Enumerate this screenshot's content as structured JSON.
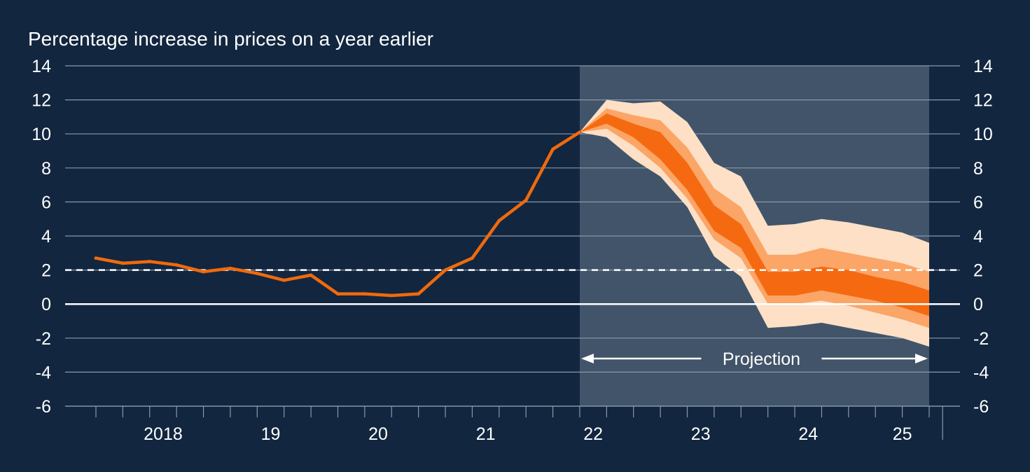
{
  "chart_data": {
    "type": "line",
    "title": "Percentage increase in prices on a year earlier",
    "xlabel": "",
    "ylabel": "",
    "ylim": [
      -6,
      14
    ],
    "yticks": [
      -6,
      -4,
      -2,
      0,
      2,
      4,
      6,
      8,
      10,
      12,
      14
    ],
    "year_labels": [
      {
        "label": "2018",
        "year": 2018
      },
      {
        "label": "19",
        "year": 2019
      },
      {
        "label": "20",
        "year": 2020
      },
      {
        "label": "21",
        "year": 2021
      },
      {
        "label": "22",
        "year": 2022
      },
      {
        "label": "23",
        "year": 2023
      },
      {
        "label": "24",
        "year": 2024
      },
      {
        "label": "25",
        "year": 2025
      }
    ],
    "target_line": {
      "value": 2,
      "style": "dashed"
    },
    "zero_line": {
      "value": 0
    },
    "projection": {
      "label": "Projection",
      "start": "2022 Q2",
      "end": "2025 Q3"
    },
    "series": [
      {
        "type": "line",
        "x": [
          "2017 Q4",
          "2018 Q1",
          "2018 Q2",
          "2018 Q3",
          "2018 Q4",
          "2019 Q1",
          "2019 Q2",
          "2019 Q3",
          "2019 Q4",
          "2020 Q1",
          "2020 Q2",
          "2020 Q3",
          "2020 Q4",
          "2021 Q1",
          "2021 Q2",
          "2021 Q3",
          "2021 Q4",
          "2022 Q1",
          "2022 Q2"
        ],
        "values": [
          2.7,
          2.4,
          2.5,
          2.3,
          1.9,
          2.1,
          1.8,
          1.4,
          1.7,
          0.6,
          0.6,
          0.5,
          0.6,
          2.0,
          2.7,
          4.9,
          6.1,
          9.1,
          10.1
        ]
      }
    ],
    "fan_chart": {
      "x": [
        "2022 Q2",
        "2022 Q3",
        "2022 Q4",
        "2023 Q1",
        "2023 Q2",
        "2023 Q3",
        "2023 Q4",
        "2024 Q1",
        "2024 Q2",
        "2024 Q3",
        "2024 Q4",
        "2025 Q1",
        "2025 Q2",
        "2025 Q3"
      ],
      "central": [
        10.1,
        10.9,
        10.2,
        9.3,
        7.5,
        5.0,
        4.0,
        1.2,
        1.2,
        1.5,
        1.2,
        0.9,
        0.6,
        0.0
      ],
      "bands": [
        {
          "level": "outer",
          "upper": [
            10.1,
            12.0,
            11.8,
            11.9,
            10.7,
            8.3,
            7.5,
            4.6,
            4.7,
            5.0,
            4.8,
            4.5,
            4.2,
            3.6
          ],
          "lower": [
            10.1,
            9.8,
            8.5,
            7.5,
            5.7,
            2.8,
            1.6,
            -1.4,
            -1.3,
            -1.1,
            -1.4,
            -1.7,
            -2.0,
            -2.5
          ]
        },
        {
          "level": "middle",
          "upper": [
            10.1,
            11.5,
            11.1,
            10.8,
            9.2,
            6.8,
            5.7,
            2.9,
            2.9,
            3.3,
            3.0,
            2.7,
            2.4,
            1.9
          ],
          "lower": [
            10.1,
            10.3,
            9.3,
            8.0,
            6.2,
            3.8,
            2.7,
            0.0,
            0.0,
            0.2,
            -0.1,
            -0.5,
            -0.9,
            -1.4
          ]
        },
        {
          "level": "inner",
          "upper": [
            10.1,
            11.2,
            10.6,
            10.1,
            8.3,
            5.8,
            4.7,
            1.9,
            1.9,
            2.2,
            2.0,
            1.6,
            1.3,
            0.8
          ],
          "lower": [
            10.1,
            10.6,
            9.8,
            8.5,
            6.7,
            4.3,
            3.3,
            0.5,
            0.5,
            0.8,
            0.5,
            0.2,
            -0.2,
            -0.7
          ]
        }
      ]
    },
    "colors": {
      "background": "#12263f",
      "projection_shade": "#415469",
      "gridline": "#8a98ab",
      "actual_line": "#f06a0c",
      "band_outer": "#fde0c6",
      "band_middle": "#fba567",
      "band_inner": "#f56a10",
      "text": "#ffffff"
    },
    "grid": true
  }
}
